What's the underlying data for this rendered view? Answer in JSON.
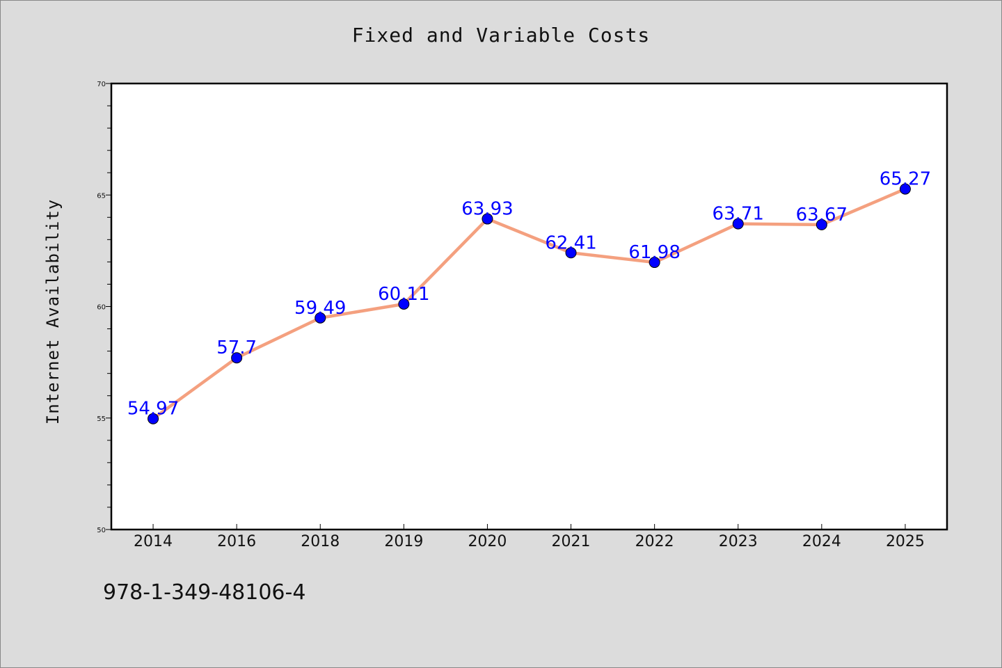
{
  "chart_data": {
    "type": "line",
    "title": "Fixed and Variable Costs",
    "xlabel": "",
    "ylabel": "Internet Availability",
    "categories": [
      "2014",
      "2016",
      "2018",
      "2019",
      "2020",
      "2021",
      "2022",
      "2023",
      "2024",
      "2025"
    ],
    "series": [
      {
        "values": [
          54.97,
          57.7,
          59.49,
          60.11,
          63.93,
          62.41,
          61.98,
          63.71,
          63.67,
          65.27
        ],
        "data_labels": [
          "54.97",
          "57.7",
          "59.49",
          "60.11",
          "63.93",
          "62.41",
          "61.98",
          "63.71",
          "63.67",
          "65.27"
        ]
      }
    ],
    "ylim": [
      50,
      70
    ],
    "y_ticks": [
      "50",
      "55",
      "60",
      "65",
      "70"
    ],
    "line_color": "#f4a07f",
    "marker_color": "#0000ff",
    "label_color": "#0000ff",
    "grid": false
  },
  "footer": {
    "code": "978-1-349-48106-4"
  }
}
